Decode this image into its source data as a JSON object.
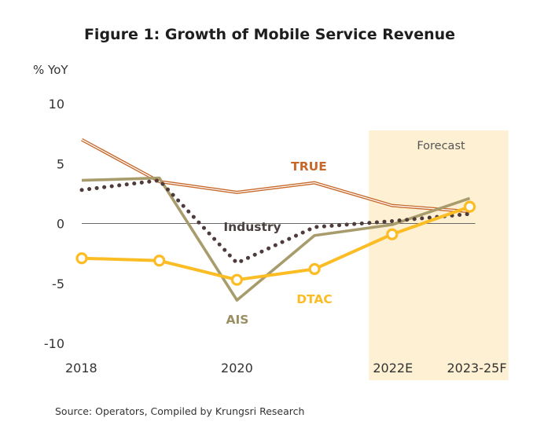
{
  "chart_data": {
    "type": "line",
    "title": "Figure 1: Growth of Mobile Service Revenue",
    "ylabel": "% YoY",
    "xlabel": "",
    "ylim": [
      -10,
      10
    ],
    "yticks": [
      "10",
      "5",
      "0",
      "-5",
      "-10"
    ],
    "ytick_values": [
      10,
      5,
      0,
      -5,
      -10
    ],
    "x": [
      2018,
      2019,
      2020,
      2021,
      2022,
      2023
    ],
    "xtick_labels": [
      "2018",
      "",
      "2020",
      "",
      "2022E",
      "2023-25F"
    ],
    "forecast_label": "Forecast",
    "forecast_start": 2021.7,
    "forecast_end": 2023.5,
    "source": "Source: Operators, Compiled by Krungsri Research",
    "series": [
      {
        "name": "TRUE",
        "color": "#c8682a",
        "style": "double",
        "values": [
          7.0,
          3.5,
          2.6,
          3.4,
          1.5,
          1.0
        ]
      },
      {
        "name": "AIS",
        "color": "#a89c6c",
        "style": "solid",
        "values": [
          3.6,
          3.8,
          -6.4,
          -1.0,
          -0.1,
          2.1
        ]
      },
      {
        "name": "Industry",
        "color": "#4e3c3c",
        "style": "dotted",
        "values": [
          2.8,
          3.6,
          -3.3,
          -0.3,
          0.2,
          0.8
        ]
      },
      {
        "name": "DTAC",
        "color": "#fbbc24",
        "style": "markers",
        "values": [
          -2.9,
          -3.1,
          -4.7,
          -3.8,
          -0.9,
          1.4
        ]
      }
    ]
  }
}
